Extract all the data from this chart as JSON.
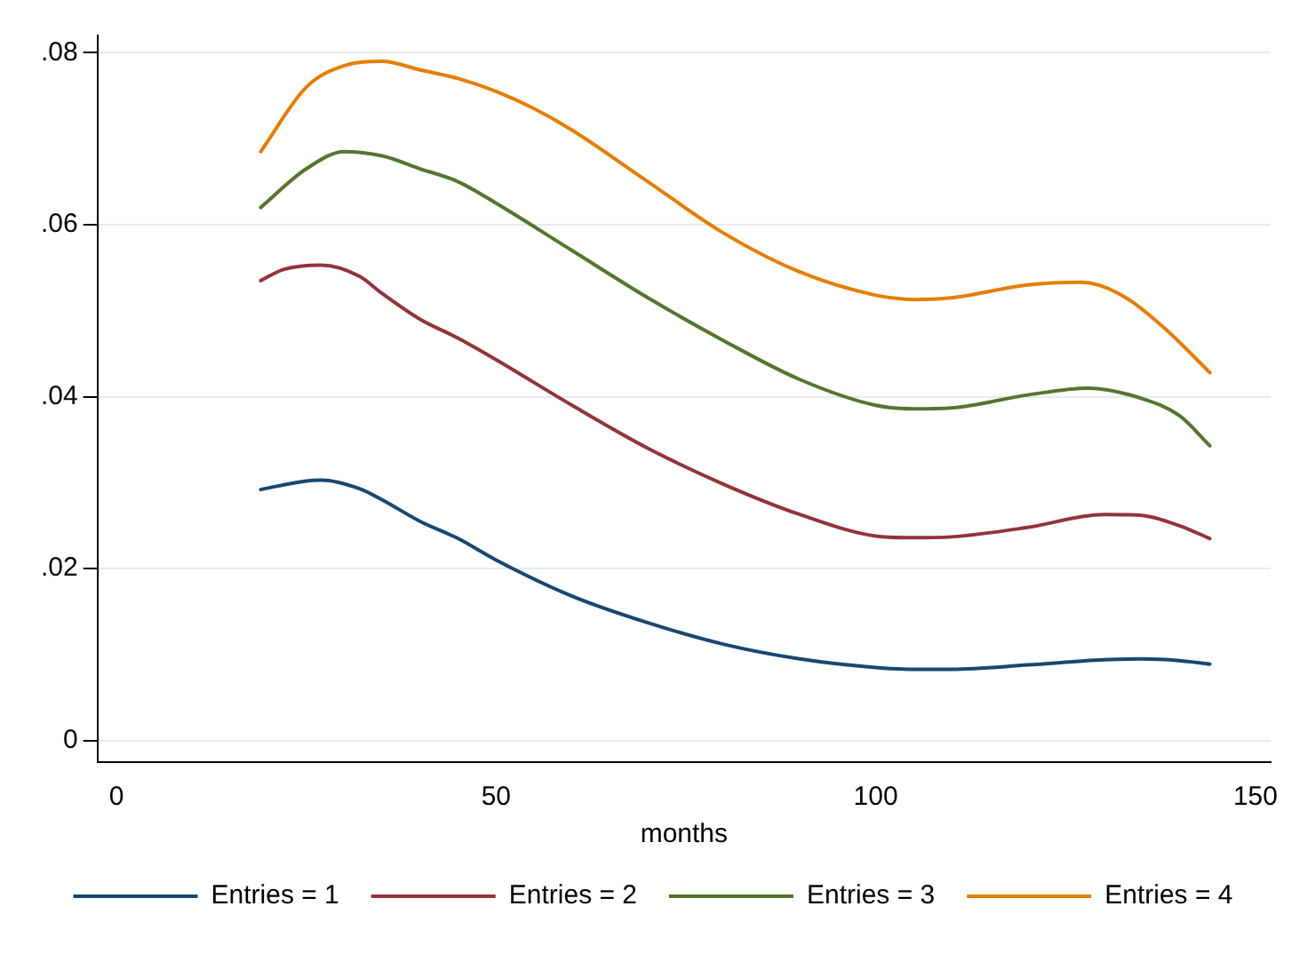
{
  "chart_data": {
    "type": "line",
    "xlabel": "months",
    "xlim": [
      -2.5,
      152
    ],
    "xticks": [
      0,
      50,
      100,
      150
    ],
    "ylim": [
      -0.0025,
      0.082
    ],
    "yticks": [
      0,
      {
        "value": 0.02,
        "label": ".02"
      },
      {
        "value": 0.04,
        "label": ".04"
      },
      {
        "value": 0.06,
        "label": ".06"
      },
      {
        "value": 0.08,
        "label": ".08"
      }
    ],
    "grid": "y",
    "legend": "bottom",
    "marker": "none",
    "line_style": "solid",
    "series": [
      {
        "name": "Entries = 1",
        "color": "#1a476f",
        "x": [
          19,
          25,
          27,
          32,
          35,
          40,
          45,
          50,
          60,
          70,
          80,
          90,
          100,
          105,
          110,
          120,
          130,
          135,
          140,
          144
        ],
        "values": [
          0.0292,
          0.0302,
          0.0303,
          0.0293,
          0.028,
          0.0255,
          0.0235,
          0.021,
          0.0168,
          0.0137,
          0.0112,
          0.0095,
          0.0085,
          0.0083,
          0.0083,
          0.0088,
          0.0094,
          0.0095,
          0.0093,
          0.0089
        ]
      },
      {
        "name": "Entries = 2",
        "color": "#90353b",
        "x": [
          19,
          22,
          27,
          32,
          35,
          40,
          45,
          50,
          60,
          70,
          80,
          90,
          100,
          105,
          110,
          120,
          130,
          135,
          140,
          144
        ],
        "values": [
          0.0535,
          0.0548,
          0.0553,
          0.054,
          0.052,
          0.049,
          0.0468,
          0.0443,
          0.039,
          0.034,
          0.0298,
          0.0263,
          0.0238,
          0.0236,
          0.0237,
          0.0248,
          0.0263,
          0.0262,
          0.025,
          0.0235
        ]
      },
      {
        "name": "Entries = 3",
        "color": "#55752f",
        "x": [
          19,
          25,
          30,
          35,
          40,
          45,
          50,
          60,
          70,
          80,
          90,
          100,
          105,
          110,
          120,
          128,
          135,
          140,
          144
        ],
        "values": [
          0.062,
          0.0665,
          0.0685,
          0.068,
          0.0665,
          0.065,
          0.0625,
          0.057,
          0.0515,
          0.0465,
          0.042,
          0.039,
          0.0386,
          0.0387,
          0.0402,
          0.041,
          0.0398,
          0.0378,
          0.0343
        ]
      },
      {
        "name": "Entries = 4",
        "color": "#e37e00",
        "x": [
          19,
          25,
          30,
          35,
          40,
          45,
          50,
          55,
          60,
          70,
          80,
          90,
          100,
          105,
          110,
          120,
          127,
          132,
          138,
          144
        ],
        "values": [
          0.0685,
          0.076,
          0.0785,
          0.079,
          0.078,
          0.077,
          0.0755,
          0.0735,
          0.071,
          0.065,
          0.059,
          0.0545,
          0.0518,
          0.0513,
          0.0515,
          0.053,
          0.0533,
          0.052,
          0.048,
          0.0428
        ]
      }
    ]
  }
}
